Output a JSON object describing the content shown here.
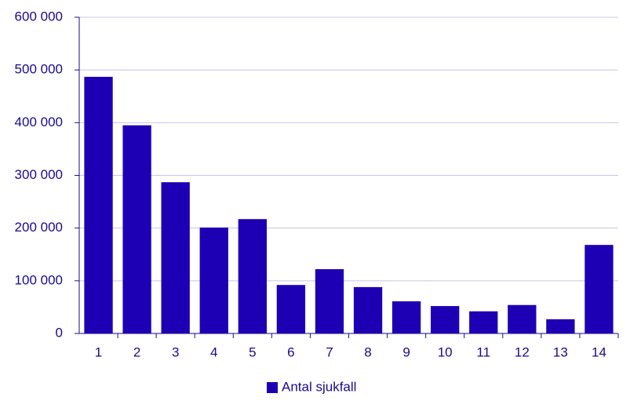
{
  "chart_data": {
    "type": "bar",
    "categories": [
      "1",
      "2",
      "3",
      "4",
      "5",
      "6",
      "7",
      "8",
      "9",
      "10",
      "11",
      "12",
      "13",
      "14"
    ],
    "series": [
      {
        "name": "Antal sjukfall",
        "color": "#1e00b4",
        "values": [
          487000,
          395000,
          287000,
          201000,
          217000,
          92000,
          122000,
          88000,
          61000,
          52000,
          42000,
          54000,
          27000,
          168000
        ]
      }
    ],
    "ylim": [
      0,
      600000
    ],
    "yticks": [
      0,
      {
        "value": 100000,
        "label": "100 000"
      },
      {
        "value": 200000,
        "label": "200 000"
      },
      {
        "value": 300000,
        "label": "300 000"
      },
      {
        "value": 400000,
        "label": "400 000"
      },
      {
        "value": 500000,
        "label": "500 000"
      },
      {
        "value": 600000,
        "label": "600 000"
      }
    ],
    "grid": true
  }
}
